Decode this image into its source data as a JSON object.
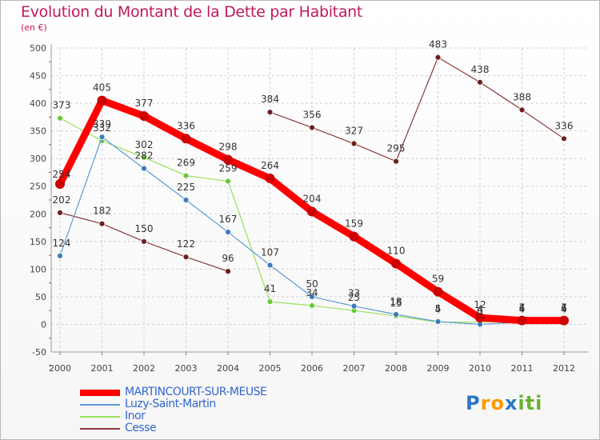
{
  "header": {
    "title": "Evolution du Montant de la Dette par Habitant",
    "unit": "(en €)"
  },
  "chart_data": {
    "type": "line",
    "title": "Evolution du Montant de la Dette par Habitant",
    "subtitle": "(en €)",
    "xlabel": "",
    "ylabel": "",
    "x": [
      "2000",
      "2001",
      "2002",
      "2003",
      "2004",
      "2005",
      "2006",
      "2007",
      "2008",
      "2009",
      "2010",
      "2011",
      "2012"
    ],
    "yticks": [
      -50,
      0,
      50,
      100,
      150,
      200,
      250,
      300,
      350,
      400,
      450,
      500
    ],
    "ylim": [
      -50,
      500
    ],
    "grid": "dashed horizontal",
    "legend_position": "bottom-left",
    "series": [
      {
        "name": "MARTINCOURT-SUR-MEUSE",
        "color": "#ff0000",
        "marker": "#cc0000",
        "values": [
          254,
          405,
          377,
          336,
          298,
          264,
          204,
          159,
          110,
          59,
          12,
          7,
          7
        ],
        "labels": [
          "254",
          "405",
          "377",
          "336",
          "298",
          "264",
          "204",
          "159",
          "110",
          "59",
          "12",
          "7",
          "7"
        ]
      },
      {
        "name": "Luzy-Saint-Martin",
        "color": "#5b9bd5",
        "marker": "#3a7bbf",
        "values": [
          124,
          339,
          282,
          225,
          167,
          107,
          50,
          33,
          18,
          5,
          0,
          4,
          4
        ],
        "labels": [
          "124",
          "339",
          "282",
          "225",
          "167",
          "107",
          "50",
          "33",
          "18",
          "5",
          "0",
          "4",
          "4"
        ]
      },
      {
        "name": "Inor",
        "color": "#9be05a",
        "marker": "#66cc33",
        "values": [
          373,
          332,
          302,
          269,
          259,
          41,
          34,
          25,
          15,
          4,
          4,
          6,
          6
        ],
        "labels": [
          "373",
          "332",
          "302",
          "269",
          "259",
          "41",
          "34",
          "25",
          "15",
          "4",
          "4",
          "6",
          "6"
        ]
      },
      {
        "name": "Cesse",
        "color": "#8b3a3a",
        "marker": "#6b1f1f",
        "values": [
          202,
          182,
          150,
          122,
          96,
          384,
          356,
          327,
          295,
          483,
          438,
          388,
          336
        ],
        "labels": [
          "202",
          "182",
          "150",
          "122",
          "96",
          "384",
          "356",
          "327",
          "295",
          "483",
          "438",
          "388",
          "336"
        ],
        "breaks_after": [
          4
        ]
      }
    ]
  },
  "legend": [
    {
      "label": "MARTINCOURT-SUR-MEUSE",
      "color": "#ff0000"
    },
    {
      "label": "Luzy-Saint-Martin",
      "color": "#5b9bd5"
    },
    {
      "label": "Inor",
      "color": "#9be05a"
    },
    {
      "label": "Cesse",
      "color": "#8b3a3a"
    }
  ],
  "logo": {
    "letters": [
      "P",
      "r",
      "o",
      "x",
      "i",
      "t",
      "i"
    ],
    "colors": [
      "#2a78c8",
      "#ff9900",
      "#ff9900",
      "#2a78c8",
      "#66b32e",
      "#66b32e",
      "#66b32e"
    ]
  }
}
